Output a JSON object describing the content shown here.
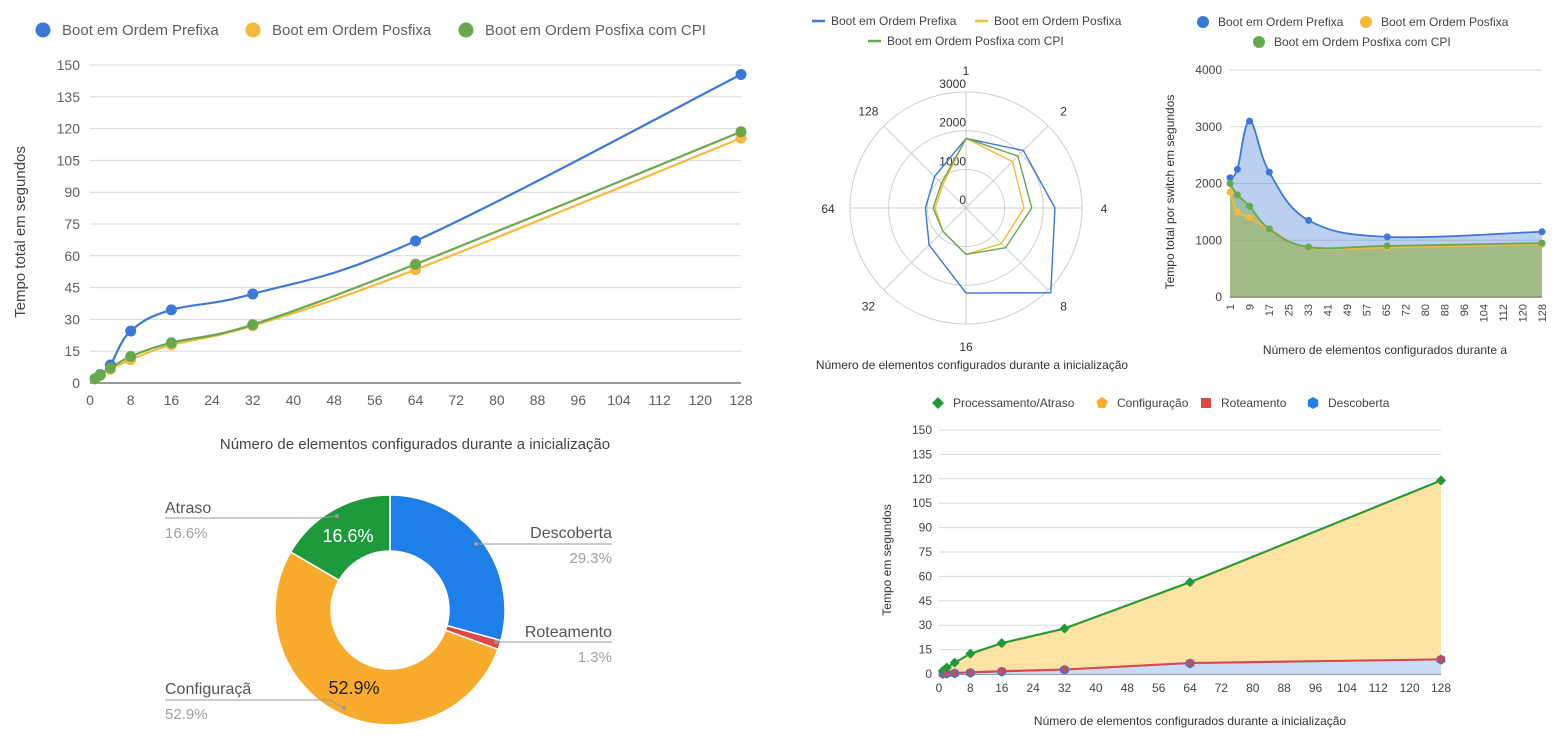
{
  "colors": {
    "blue": "#3c78d8",
    "yellow": "#f6b93b",
    "green": "#6aa84f",
    "grid": "#d9d9d9",
    "axis": "#333333",
    "text": "#5f5f5f",
    "processing": "#1e9a3c",
    "config": "#f9ab2e",
    "routing": "#e04646",
    "discovery": "#1f7fe8"
  },
  "chart_data": [
    {
      "type": "line",
      "title": "",
      "xlabel": "Número de elementos configurados durante a inicialização",
      "ylabel": "Tempo total em segundos",
      "xlim": [
        0,
        128
      ],
      "ylim": [
        0,
        150
      ],
      "x_ticks": [
        "0",
        "8",
        "16",
        "24",
        "32",
        "40",
        "48",
        "56",
        "64",
        "72",
        "80",
        "88",
        "96",
        "104",
        "112",
        "120",
        "128"
      ],
      "y_ticks": [
        "0",
        "15",
        "30",
        "45",
        "60",
        "75",
        "90",
        "105",
        "120",
        "135",
        "150"
      ],
      "legend_position": "top",
      "x": [
        1,
        2,
        4,
        8,
        16,
        32,
        64,
        128
      ],
      "series": [
        {
          "name": "Boot em Ordem Prefixa",
          "values": [
            2,
            4,
            8.5,
            24.5,
            34.5,
            42,
            67,
            145.5
          ]
        },
        {
          "name": "Boot em Ordem Posfixa",
          "values": [
            2,
            3.5,
            6.5,
            11,
            18,
            27,
            53.5,
            115.5
          ]
        },
        {
          "name": "Boot em Ordem Posfixa com CPI",
          "values": [
            2,
            3.8,
            7,
            12.5,
            19,
            27.5,
            56,
            118.5
          ]
        }
      ]
    },
    {
      "type": "radar",
      "title": "",
      "xlabel": "Número de elementos configurados durante a inicialização",
      "categories": [
        "1",
        "2",
        "4",
        "8",
        "16",
        "32",
        "64",
        "128"
      ],
      "radial_ticks": [
        "0",
        "1000",
        "2000",
        "3000"
      ],
      "rmax": 3000,
      "legend_position": "top",
      "series": [
        {
          "name": "Boot em Ordem Prefixa",
          "values": [
            1800,
            2100,
            2300,
            3100,
            2200,
            1350,
            1050,
            1150
          ]
        },
        {
          "name": "Boot em Ordem Posfixa",
          "values": [
            1800,
            1700,
            1500,
            1300,
            1200,
            850,
            800,
            850
          ]
        },
        {
          "name": "Boot em Ordem Posfixa com CPI",
          "values": [
            1800,
            1900,
            1700,
            1450,
            1200,
            850,
            850,
            900
          ]
        }
      ]
    },
    {
      "type": "area",
      "title": "",
      "xlabel": "Número de elementos configurados durante a",
      "ylabel": "Tempo total por switch em segundos",
      "xlim": [
        1,
        128
      ],
      "ylim": [
        0,
        4000
      ],
      "x_ticks": [
        "1",
        "9",
        "17",
        "25",
        "33",
        "41",
        "49",
        "57",
        "65",
        "72",
        "80",
        "88",
        "96",
        "104",
        "112",
        "120",
        "128"
      ],
      "y_ticks": [
        "0",
        "1000",
        "2000",
        "3000",
        "4000"
      ],
      "legend_position": "top",
      "series": [
        {
          "name": "Boot em Ordem Prefixa",
          "x": [
            1,
            4,
            9,
            17,
            33,
            65,
            128
          ],
          "values": [
            2100,
            2250,
            3100,
            2200,
            1350,
            1060,
            1150
          ]
        },
        {
          "name": "Boot em Ordem Posfixa",
          "x": [
            1,
            4,
            9,
            17,
            33,
            65,
            128
          ],
          "values": [
            1850,
            1500,
            1400,
            1200,
            870,
            870,
            930
          ]
        },
        {
          "name": "Boot em Ordem Posfixa com CPI",
          "x": [
            1,
            4,
            9,
            17,
            33,
            65,
            128
          ],
          "values": [
            2000,
            1800,
            1600,
            1200,
            880,
            900,
            950
          ]
        }
      ]
    },
    {
      "type": "pie",
      "title": "",
      "slices": [
        {
          "label": "Descoberta",
          "value": 29.3,
          "display": "29.3%"
        },
        {
          "label": "Roteamento",
          "value": 1.3,
          "display": "1.3%"
        },
        {
          "label": "Configuraçã",
          "value": 52.9,
          "display": "52.9%"
        },
        {
          "label": "Atraso",
          "value": 16.6,
          "display": "16.6%"
        }
      ],
      "inner_labels": [
        "16.6%",
        "52.9%"
      ]
    },
    {
      "type": "area",
      "title": "",
      "xlabel": "Número de elementos configurados durante a inicialização",
      "ylabel": "Tempo em segundos",
      "xlim": [
        0,
        128
      ],
      "ylim": [
        0,
        150
      ],
      "x_ticks": [
        "0",
        "8",
        "16",
        "24",
        "32",
        "40",
        "48",
        "56",
        "64",
        "72",
        "80",
        "88",
        "96",
        "104",
        "112",
        "120",
        "128"
      ],
      "y_ticks": [
        "0",
        "15",
        "30",
        "45",
        "60",
        "75",
        "90",
        "105",
        "120",
        "135",
        "150"
      ],
      "legend_position": "top",
      "x": [
        1,
        2,
        4,
        8,
        16,
        32,
        64,
        128
      ],
      "series": [
        {
          "name": "Processamento/Atraso",
          "values": [
            2,
            4,
            7,
            12.5,
            19,
            28,
            56.5,
            119
          ]
        },
        {
          "name": "Configuração",
          "values": [
            1.9,
            3.8,
            6.8,
            12,
            18.5,
            27.5,
            56,
            118.5
          ]
        },
        {
          "name": "Roteamento",
          "values": [
            0.2,
            0.4,
            0.7,
            1,
            1.8,
            2.8,
            6.8,
            9
          ]
        },
        {
          "name": "Descoberta",
          "values": [
            0.1,
            0.2,
            0.4,
            0.7,
            1.4,
            2.5,
            6.5,
            8.8
          ]
        }
      ]
    }
  ]
}
